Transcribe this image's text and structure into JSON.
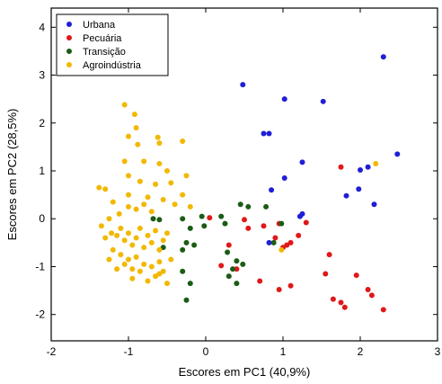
{
  "chart_data": {
    "type": "scatter",
    "title": "",
    "xlabel": "Escores em PC1 (40,9%)",
    "ylabel": "Escores em PC2 (28,5%)",
    "xlim": [
      -2,
      3
    ],
    "ylim": [
      -2.55,
      4.4
    ],
    "x_ticks": [
      -2,
      -1,
      0,
      1,
      2,
      3
    ],
    "y_ticks": [
      -2,
      -1,
      0,
      1,
      2,
      3,
      4
    ],
    "legend_position": "top-left",
    "grid": false,
    "series": [
      {
        "name": "Urbana",
        "color": "#1f1fd6",
        "points": [
          [
            0.48,
            2.8
          ],
          [
            1.02,
            2.5
          ],
          [
            1.52,
            2.45
          ],
          [
            2.3,
            3.38
          ],
          [
            0.75,
            1.78
          ],
          [
            0.82,
            1.78
          ],
          [
            1.25,
            1.18
          ],
          [
            2.0,
            1.02
          ],
          [
            2.1,
            1.08
          ],
          [
            2.48,
            1.35
          ],
          [
            1.02,
            0.85
          ],
          [
            0.85,
            0.6
          ],
          [
            1.82,
            0.48
          ],
          [
            1.98,
            0.62
          ],
          [
            2.18,
            0.3
          ],
          [
            0.82,
            -0.5
          ],
          [
            1.22,
            0.05
          ],
          [
            1.25,
            0.1
          ]
        ]
      },
      {
        "name": "Pecuária",
        "color": "#e01818",
        "points": [
          [
            0.05,
            0.02
          ],
          [
            0.5,
            -0.02
          ],
          [
            0.55,
            -0.2
          ],
          [
            0.75,
            -0.15
          ],
          [
            0.95,
            -0.1
          ],
          [
            0.9,
            -0.4
          ],
          [
            1.0,
            -0.6
          ],
          [
            1.05,
            -0.55
          ],
          [
            1.1,
            -0.5
          ],
          [
            1.3,
            -0.08
          ],
          [
            1.2,
            -0.35
          ],
          [
            1.75,
            1.08
          ],
          [
            0.2,
            -0.98
          ],
          [
            0.4,
            -1.05
          ],
          [
            0.7,
            -1.3
          ],
          [
            0.95,
            -1.48
          ],
          [
            1.1,
            -1.4
          ],
          [
            1.6,
            -0.75
          ],
          [
            1.55,
            -1.15
          ],
          [
            1.65,
            -1.68
          ],
          [
            1.75,
            -1.75
          ],
          [
            1.8,
            -1.85
          ],
          [
            1.95,
            -1.18
          ],
          [
            2.1,
            -1.48
          ],
          [
            2.15,
            -1.6
          ],
          [
            2.3,
            -1.9
          ],
          [
            0.3,
            -0.55
          ]
        ]
      },
      {
        "name": "Transição",
        "color": "#1a5c14",
        "points": [
          [
            -0.68,
            0.0
          ],
          [
            -0.6,
            -0.02
          ],
          [
            -0.3,
            0.0
          ],
          [
            -0.2,
            -0.2
          ],
          [
            -0.05,
            0.05
          ],
          [
            -0.02,
            -0.15
          ],
          [
            0.2,
            0.05
          ],
          [
            0.25,
            -0.1
          ],
          [
            0.45,
            0.3
          ],
          [
            0.55,
            0.25
          ],
          [
            0.98,
            -0.1
          ],
          [
            0.88,
            -0.5
          ],
          [
            -0.55,
            -0.6
          ],
          [
            -0.3,
            -0.65
          ],
          [
            -0.25,
            -0.5
          ],
          [
            -0.15,
            -0.55
          ],
          [
            -0.3,
            -1.1
          ],
          [
            -0.2,
            -1.35
          ],
          [
            -0.25,
            -1.7
          ],
          [
            0.3,
            -1.2
          ],
          [
            0.35,
            -1.05
          ],
          [
            0.4,
            -0.88
          ],
          [
            0.4,
            -1.35
          ],
          [
            0.48,
            -0.95
          ],
          [
            0.28,
            -0.7
          ],
          [
            0.78,
            0.25
          ]
        ]
      },
      {
        "name": "Agroindústria",
        "color": "#f2b800",
        "points": [
          [
            -1.05,
            2.38
          ],
          [
            -0.92,
            2.18
          ],
          [
            -0.9,
            1.9
          ],
          [
            -1.0,
            1.72
          ],
          [
            -0.88,
            1.55
          ],
          [
            -0.62,
            1.7
          ],
          [
            -0.6,
            1.58
          ],
          [
            -1.05,
            1.2
          ],
          [
            -0.8,
            1.2
          ],
          [
            -0.6,
            1.15
          ],
          [
            -0.3,
            1.62
          ],
          [
            -0.5,
            1.0
          ],
          [
            -1.38,
            0.65
          ],
          [
            -1.3,
            0.62
          ],
          [
            -1.0,
            0.9
          ],
          [
            -0.85,
            0.78
          ],
          [
            -0.65,
            0.72
          ],
          [
            -0.45,
            0.75
          ],
          [
            -0.25,
            0.9
          ],
          [
            -1.2,
            0.35
          ],
          [
            -1.12,
            0.1
          ],
          [
            -1.0,
            0.25
          ],
          [
            -0.9,
            0.2
          ],
          [
            -0.8,
            0.3
          ],
          [
            -0.7,
            0.15
          ],
          [
            -0.55,
            0.4
          ],
          [
            -0.4,
            0.3
          ],
          [
            -0.3,
            0.5
          ],
          [
            -0.2,
            0.25
          ],
          [
            -1.3,
            -0.4
          ],
          [
            -1.22,
            -0.3
          ],
          [
            -1.15,
            -0.35
          ],
          [
            -1.1,
            -0.2
          ],
          [
            -1.05,
            -0.45
          ],
          [
            -1.0,
            -0.3
          ],
          [
            -0.95,
            -0.55
          ],
          [
            -0.9,
            -0.4
          ],
          [
            -0.85,
            -0.2
          ],
          [
            -0.8,
            -0.6
          ],
          [
            -0.75,
            -0.35
          ],
          [
            -0.7,
            -0.5
          ],
          [
            -0.65,
            -0.25
          ],
          [
            -0.6,
            -0.65
          ],
          [
            -0.55,
            -0.45
          ],
          [
            -0.5,
            -0.3
          ],
          [
            -0.45,
            -0.85
          ],
          [
            -1.25,
            -0.85
          ],
          [
            -1.2,
            -0.65
          ],
          [
            -1.1,
            -0.75
          ],
          [
            -1.05,
            -0.95
          ],
          [
            -1.0,
            -0.85
          ],
          [
            -0.95,
            -1.05
          ],
          [
            -0.9,
            -0.8
          ],
          [
            -0.85,
            -1.1
          ],
          [
            -0.8,
            -0.95
          ],
          [
            -0.75,
            -1.3
          ],
          [
            -0.7,
            -1.0
          ],
          [
            -0.65,
            -1.2
          ],
          [
            -0.6,
            -0.9
          ],
          [
            -0.55,
            -1.1
          ],
          [
            -0.5,
            -1.35
          ],
          [
            -0.6,
            -1.15
          ],
          [
            -1.15,
            -1.05
          ],
          [
            -0.95,
            -1.25
          ],
          [
            -1.35,
            -0.15
          ],
          [
            -1.25,
            0.0
          ],
          [
            0.98,
            -0.65
          ],
          [
            2.2,
            1.15
          ],
          [
            -0.75,
            0.45
          ],
          [
            -1.0,
            0.5
          ]
        ]
      }
    ]
  }
}
